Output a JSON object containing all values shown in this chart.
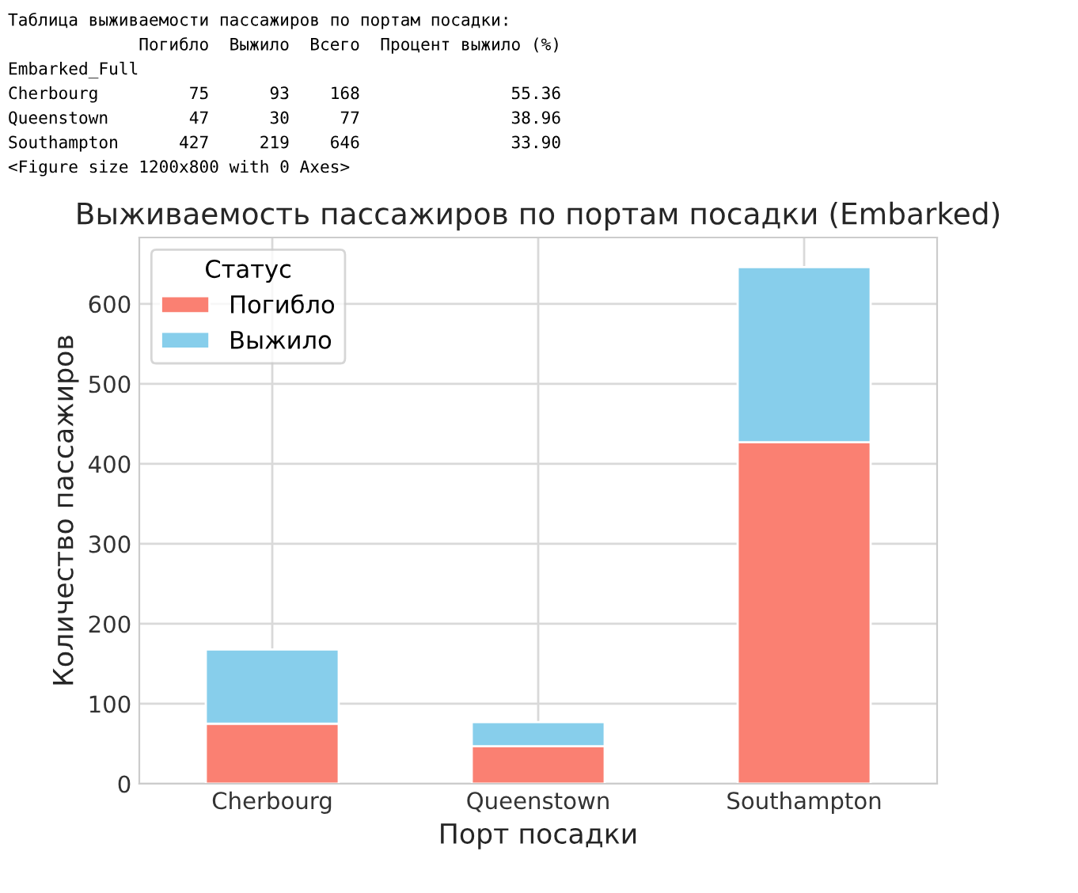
{
  "chart_data": {
    "type": "bar",
    "stacked": true,
    "title": "Выживаемость пассажиров по портам посадки (Embarked)",
    "xlabel": "Порт посадки",
    "ylabel": "Количество пассажиров",
    "legend_title": "Статус",
    "categories": [
      "Cherbourg",
      "Queenstown",
      "Southampton"
    ],
    "series": [
      {
        "name": "Погибло",
        "color": "#fa8072",
        "values": [
          75,
          47,
          427
        ]
      },
      {
        "name": "Выжило",
        "color": "#87ceeb",
        "values": [
          93,
          30,
          219
        ]
      }
    ],
    "ylim": [
      0,
      683
    ],
    "yticks": [
      0,
      100,
      200,
      300,
      400,
      500,
      600
    ],
    "grid": true,
    "legend": "top left",
    "annotations": [
      "Таблица выживаемости пассажиров по портам посадки:",
      "             Погибло  Выжило  Всего  Процент выжило (%)",
      "Embarked_Full",
      "Cherbourg         75      93    168               55.36",
      "Queenstown        47      30     77               38.96",
      "Southampton      427     219    646               33.90",
      "<Figure size 1200x800 with 0 Axes>"
    ]
  }
}
